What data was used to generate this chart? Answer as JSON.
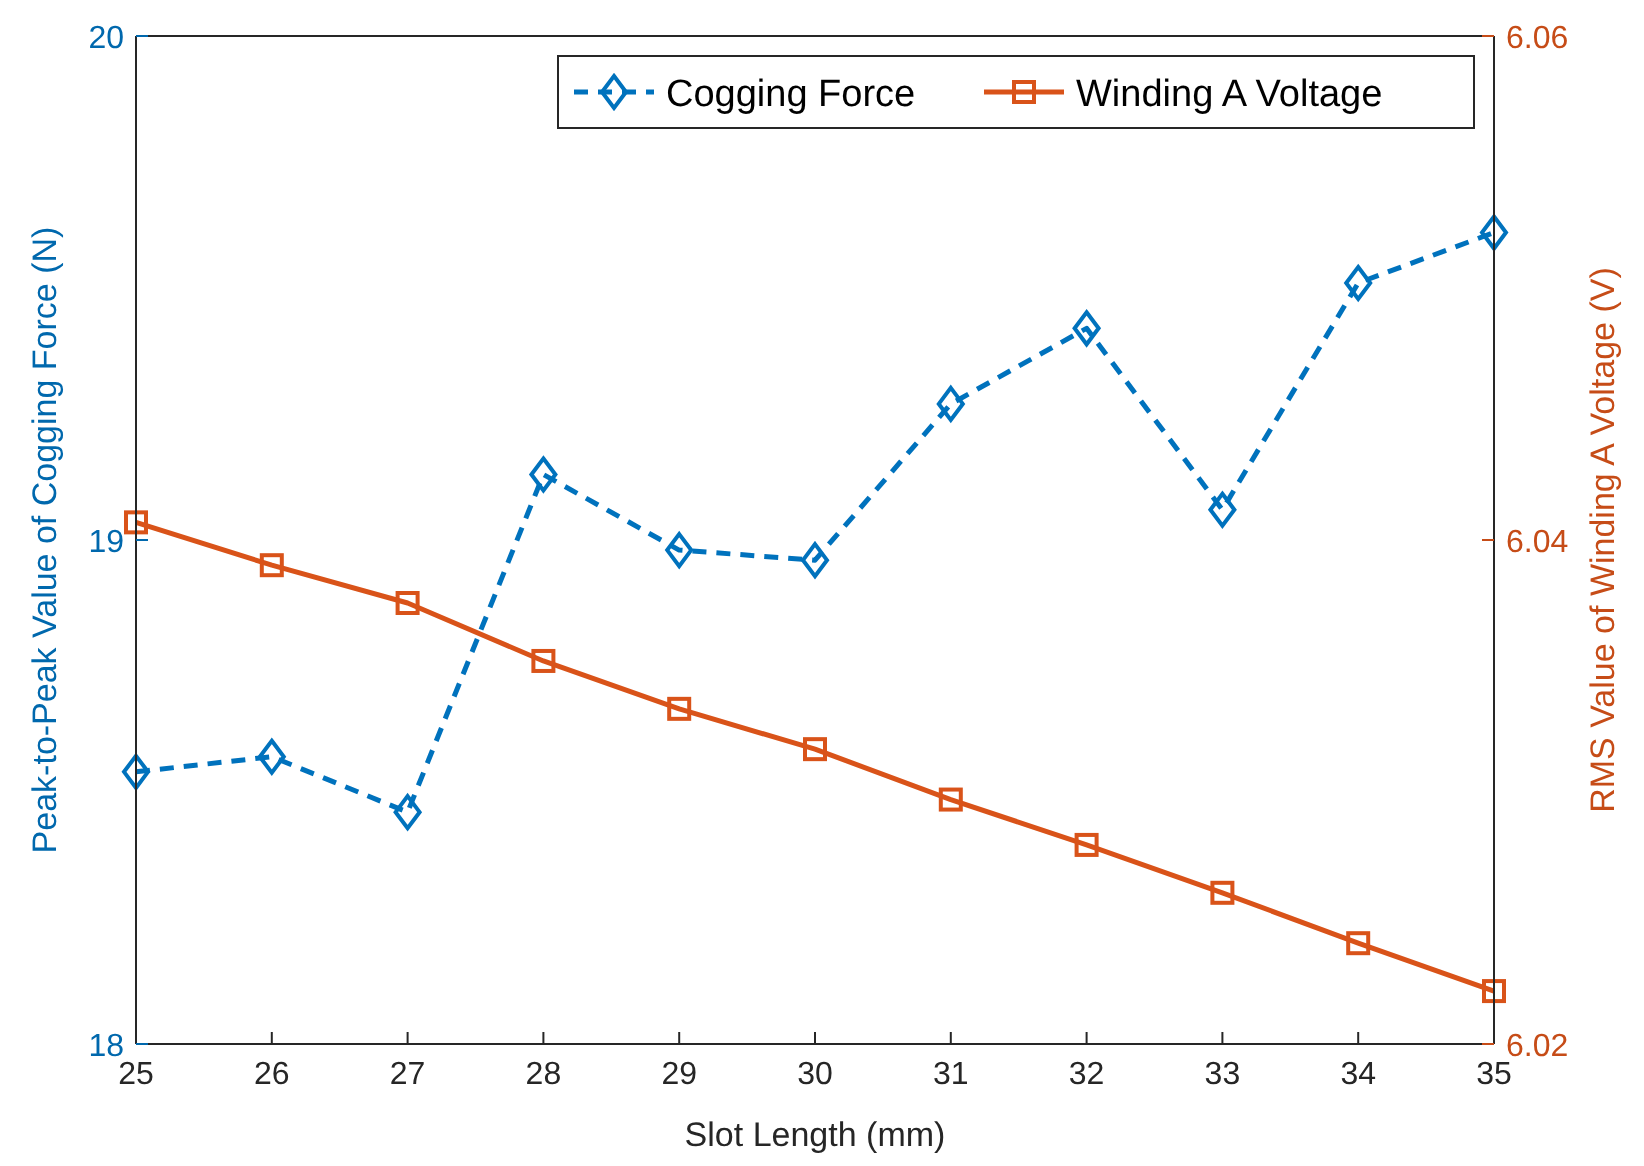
{
  "chart_data": {
    "type": "line",
    "xlabel": "Slot Length (mm)",
    "ylabel": "Peak-to-Peak Value of Cogging Force (N)",
    "y2label": "RMS Value of Winding A Voltage (V)",
    "x": [
      25,
      26,
      27,
      28,
      29,
      30,
      31,
      32,
      33,
      34,
      35
    ],
    "xlim": [
      25,
      35
    ],
    "xticks": [
      25,
      26,
      27,
      28,
      29,
      30,
      31,
      32,
      33,
      34,
      35
    ],
    "ylim": [
      18,
      20
    ],
    "yticks": [
      18,
      19,
      20
    ],
    "y2lim": [
      6.02,
      6.06
    ],
    "y2ticks": [
      {
        "value": 6.02,
        "label": "6.02"
      },
      {
        "value": 6.04,
        "label": "6.04"
      },
      {
        "value": 6.06,
        "label": "6.06"
      }
    ],
    "grid": false,
    "legend": "top right",
    "series": [
      {
        "name": "Cogging Force",
        "color": "#0072bd",
        "marker": "diamond",
        "line_style": "dashed",
        "values": [
          18.54,
          18.57,
          18.46,
          19.13,
          18.98,
          18.96,
          19.27,
          19.42,
          19.06,
          19.51,
          19.61
        ]
      },
      {
        "name": "Winding A Voltage",
        "color": "#d95319",
        "marker": "square",
        "line_style": "solid",
        "axis": "y2",
        "values": [
          6.0407,
          6.039,
          6.0375,
          6.0352,
          6.0333,
          6.0317,
          6.0297,
          6.0279,
          6.026,
          6.024,
          6.0221
        ]
      }
    ]
  }
}
